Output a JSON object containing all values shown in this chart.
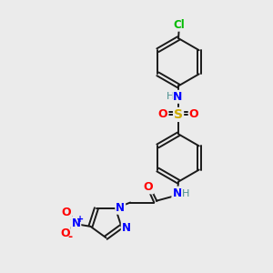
{
  "background_color": "#ebebeb",
  "bond_color": "#1a1a1a",
  "atom_colors": {
    "N": "#0000ff",
    "O": "#ff0000",
    "S": "#ccaa00",
    "Cl": "#00bb00",
    "H": "#4a9090",
    "C": "#1a1a1a"
  },
  "figsize": [
    3.0,
    3.0
  ],
  "dpi": 100
}
